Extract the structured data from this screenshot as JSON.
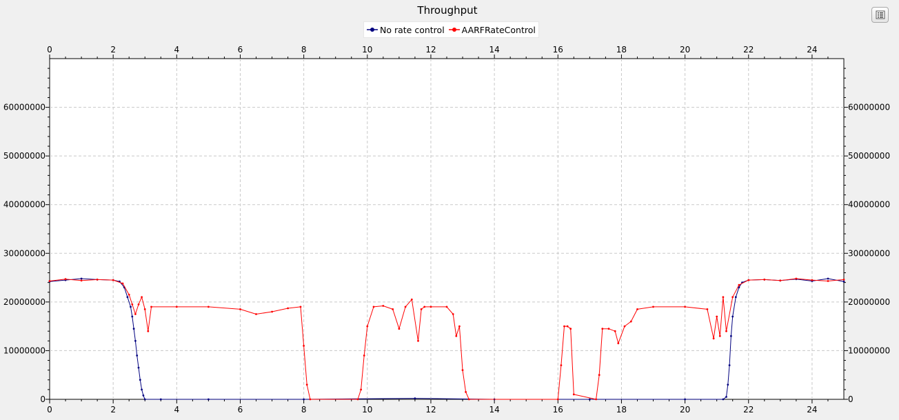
{
  "window": {
    "title": "Throughput"
  },
  "toolbar": {
    "menu_icon": "list-icon"
  },
  "chart_data": {
    "type": "line",
    "title": "Throughput",
    "xlabel": "",
    "ylabel": "",
    "xlim": [
      0,
      25
    ],
    "ylim": [
      0,
      70000000
    ],
    "x_ticks": [
      "0",
      "2",
      "4",
      "6",
      "8",
      "10",
      "12",
      "14",
      "16",
      "18",
      "20",
      "22",
      "24"
    ],
    "y_ticks": [
      "0",
      "10000000",
      "20000000",
      "30000000",
      "40000000",
      "50000000",
      "60000000"
    ],
    "grid": true,
    "legend_position": "top-center",
    "series": [
      {
        "name": "No rate control",
        "color": "#00007f",
        "x": [
          0,
          0.5,
          1.0,
          1.5,
          2.0,
          2.2,
          2.35,
          2.45,
          2.55,
          2.6,
          2.65,
          2.7,
          2.75,
          2.8,
          2.85,
          2.9,
          2.95,
          3.0,
          3.5,
          5,
          8,
          11.5,
          14,
          17,
          20,
          21.2,
          21.3,
          21.35,
          21.4,
          21.45,
          21.5,
          21.6,
          21.7,
          21.8,
          22.0,
          22.5,
          23,
          23.5,
          24,
          24.5,
          25
        ],
        "y": [
          24200000,
          24500000,
          24800000,
          24600000,
          24500000,
          24200000,
          23000000,
          21000000,
          19000000,
          17000000,
          14500000,
          12000000,
          9000000,
          6500000,
          4000000,
          2000000,
          800000,
          0,
          0,
          0,
          0,
          200000,
          0,
          0,
          0,
          0,
          500000,
          3000000,
          7000000,
          13000000,
          17000000,
          21000000,
          23000000,
          24000000,
          24500000,
          24600000,
          24400000,
          24700000,
          24300000,
          24800000,
          24200000
        ]
      },
      {
        "name": "AARFRateControl",
        "color": "#ff0000",
        "x": [
          0,
          0.5,
          1.0,
          1.5,
          2.0,
          2.3,
          2.5,
          2.6,
          2.7,
          2.8,
          2.9,
          3.0,
          3.1,
          3.2,
          4,
          5,
          6,
          6.5,
          7,
          7.5,
          7.9,
          8.0,
          8.1,
          8.2,
          9.7,
          9.8,
          9.9,
          10.0,
          10.2,
          10.5,
          10.8,
          11.0,
          11.2,
          11.4,
          11.6,
          11.7,
          11.8,
          12.0,
          12.5,
          12.7,
          12.8,
          12.9,
          13.0,
          13.1,
          13.2,
          16.0,
          16.1,
          16.2,
          16.3,
          16.4,
          16.5,
          17.2,
          17.3,
          17.4,
          17.6,
          17.8,
          17.9,
          18.1,
          18.3,
          18.5,
          19,
          20,
          20.7,
          20.9,
          21.0,
          21.1,
          21.2,
          21.3,
          21.5,
          21.7,
          22,
          22.5,
          23,
          23.5,
          24,
          24.5,
          25
        ],
        "y": [
          24300000,
          24700000,
          24400000,
          24600000,
          24500000,
          23800000,
          21500000,
          19500000,
          17500000,
          19500000,
          21000000,
          18500000,
          14000000,
          19000000,
          19000000,
          19000000,
          18500000,
          17500000,
          18000000,
          18700000,
          19000000,
          11000000,
          3000000,
          0,
          0,
          2000000,
          9000000,
          15000000,
          19000000,
          19200000,
          18500000,
          14500000,
          19000000,
          20500000,
          12000000,
          18500000,
          19000000,
          19000000,
          19000000,
          17500000,
          13000000,
          15000000,
          6000000,
          1500000,
          0,
          0,
          7000000,
          15000000,
          15000000,
          14500000,
          1000000,
          0,
          5000000,
          14500000,
          14500000,
          14000000,
          11500000,
          15000000,
          16000000,
          18500000,
          19000000,
          19000000,
          18500000,
          12500000,
          17000000,
          13000000,
          21000000,
          14000000,
          21000000,
          23500000,
          24500000,
          24600000,
          24400000,
          24800000,
          24500000,
          24300000,
          24600000
        ]
      }
    ]
  }
}
